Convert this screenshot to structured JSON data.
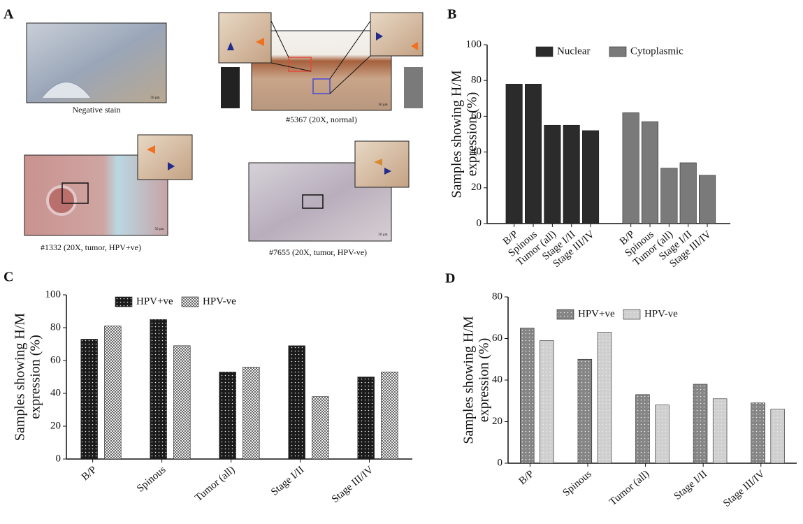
{
  "panel_labels": [
    "A",
    "B",
    "C",
    "D"
  ],
  "images": {
    "captions": [
      "Negative stain",
      "#5367 (20X, normal)",
      "#1332 (20X, tumor, HPV+ve)",
      "#7655 (20X, tumor, HPV-ve)"
    ],
    "scale_bar": "50 µm"
  },
  "chart_data": [
    {
      "type": "bar",
      "group_by": "series",
      "y_label": [
        "Samples showing H/M",
        "expression (%)"
      ],
      "categories": [
        "B/P",
        "Spinous",
        "Tumor (all)",
        "Stage I/II",
        "Stage III/IV"
      ],
      "series": [
        {
          "name": "Nuclear",
          "color": "#2b2b2b",
          "pattern": "solid",
          "values": [
            78,
            78,
            55,
            55,
            52
          ]
        },
        {
          "name": "Cytoplasmic",
          "color": "#7a7a7a",
          "pattern": "solid",
          "values": [
            62,
            57,
            31,
            34,
            27
          ]
        }
      ],
      "ylim": [
        0,
        100
      ],
      "yticks": [
        0,
        20,
        40,
        60,
        80,
        100
      ],
      "legend": "upper left"
    },
    {
      "type": "bar",
      "group_by": "category",
      "y_label": [
        "Samples showing H/M",
        "expression (%)"
      ],
      "categories": [
        "B/P",
        "Spinous",
        "Tumor (all)",
        "Stage I/II",
        "Stage III/IV"
      ],
      "series": [
        {
          "name": "HPV+ve",
          "color": "#1a1a1a",
          "pattern": "dots",
          "values": [
            73,
            85,
            53,
            69,
            50
          ]
        },
        {
          "name": "HPV-ve",
          "color": "#6a6a6a",
          "pattern": "checker",
          "values": [
            81,
            69,
            56,
            38,
            53
          ]
        }
      ],
      "ylim": [
        0,
        100
      ],
      "yticks": [
        0,
        20,
        40,
        60,
        80,
        100
      ],
      "legend": "upper left"
    },
    {
      "type": "bar",
      "group_by": "category",
      "y_label": [
        "Samples showing H/M",
        "expression (%)"
      ],
      "categories": [
        "B/P",
        "Spinous",
        "Tumor (all)",
        "Stage I/II",
        "Stage III/IV"
      ],
      "series": [
        {
          "name": "HPV+ve",
          "color": "#858585",
          "pattern": "dots",
          "values": [
            65,
            50,
            33,
            38,
            29
          ]
        },
        {
          "name": "HPV-ve",
          "color": "#cfcfcf",
          "pattern": "dots",
          "values": [
            59,
            63,
            28,
            31,
            26
          ]
        }
      ],
      "ylim": [
        0,
        80
      ],
      "yticks": [
        0,
        20,
        40,
        60,
        80
      ],
      "legend": "upper left"
    }
  ]
}
